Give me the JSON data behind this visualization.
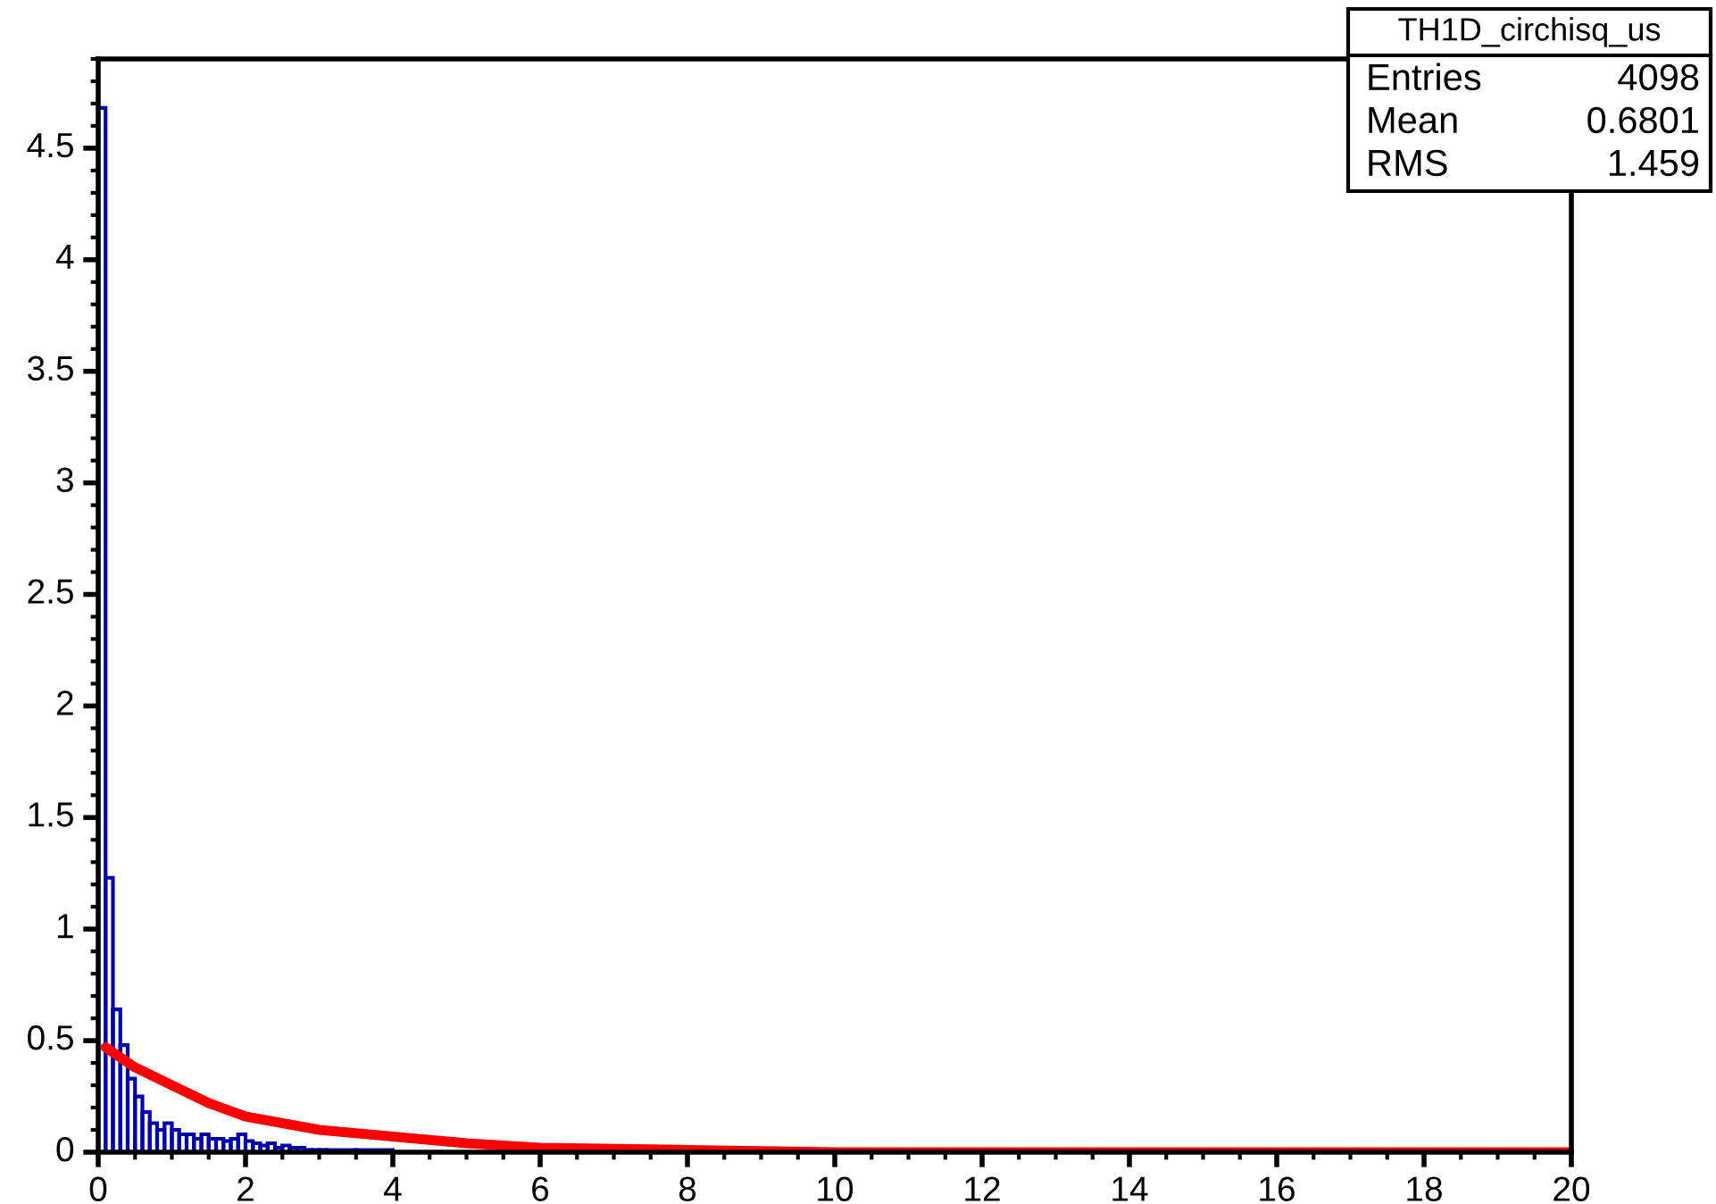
{
  "chart_data": {
    "type": "histogram",
    "series": [
      {
        "color": "#0000aa",
        "bins": [
          0,
          0.1,
          0.2,
          0.3,
          0.4,
          0.5,
          0.6,
          0.7,
          0.8,
          0.9,
          1.0,
          1.1,
          1.2,
          1.3,
          1.4,
          1.5,
          1.6,
          1.7,
          1.8,
          1.9,
          2.0,
          2.1,
          2.2,
          2.3,
          2.4,
          2.5,
          2.6,
          2.7,
          2.8,
          2.9,
          3.0,
          3.1,
          3.5,
          4.0,
          20
        ],
        "values": [
          4.68,
          1.23,
          0.64,
          0.48,
          0.33,
          0.25,
          0.18,
          0.13,
          0.1,
          0.13,
          0.1,
          0.08,
          0.08,
          0.06,
          0.08,
          0.06,
          0.06,
          0.05,
          0.06,
          0.08,
          0.05,
          0.04,
          0.03,
          0.04,
          0.02,
          0.03,
          0.02,
          0.02,
          0.01,
          0.01,
          0.01,
          0.01,
          0.01,
          0
        ]
      },
      {
        "type": "line",
        "color": "#ff0000",
        "x": [
          0.1,
          0.5,
          1,
          1.5,
          2,
          3,
          4,
          5,
          6,
          8,
          10,
          14,
          20
        ],
        "values": [
          0.47,
          0.38,
          0.3,
          0.22,
          0.16,
          0.1,
          0.07,
          0.04,
          0.02,
          0.01,
          0,
          0,
          0
        ]
      }
    ],
    "xlim": [
      0,
      20
    ],
    "xticks": [
      0,
      2,
      4,
      6,
      8,
      10,
      12,
      14,
      16,
      18,
      20
    ],
    "ylim": [
      0,
      4.9
    ],
    "yticks": [
      0,
      0.5,
      1,
      1.5,
      2,
      2.5,
      3,
      3.5,
      4,
      4.5
    ],
    "annotations": [
      "TH1D_circhisq_us",
      "Entries",
      "4098",
      "Mean",
      "0.6801",
      "RMS",
      "1.459"
    ]
  }
}
